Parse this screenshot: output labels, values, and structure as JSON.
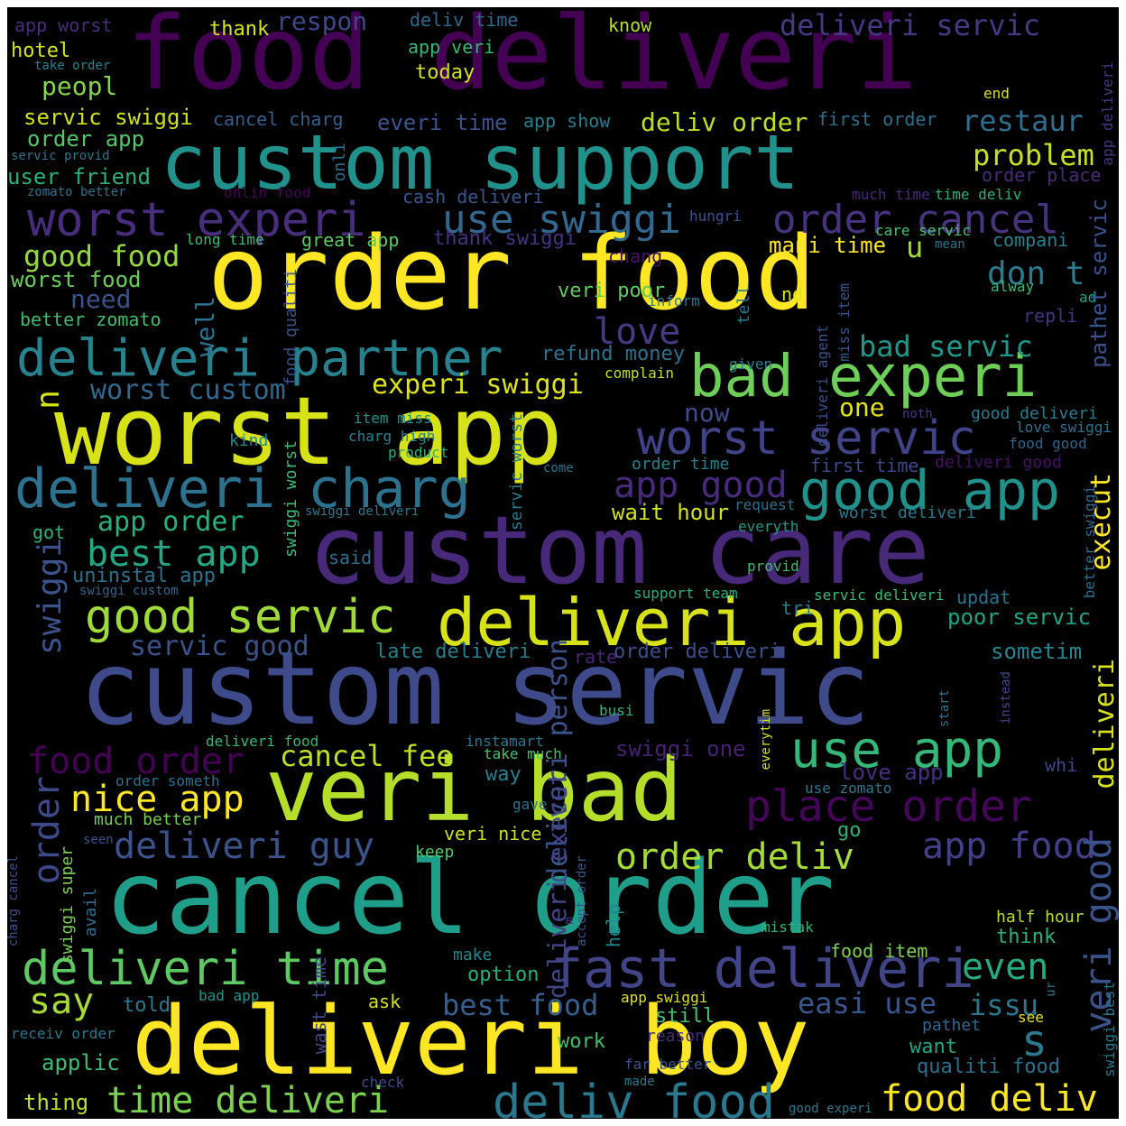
{
  "words": [
    {
      "text": "food deliveri",
      "color": "#440154"
    },
    {
      "text": "custom support",
      "color": "#21918c"
    },
    {
      "text": "order food",
      "color": "#fde725"
    },
    {
      "text": "worst app",
      "color": "#d8e219"
    },
    {
      "text": "custom care",
      "color": "#482878"
    },
    {
      "text": "custom servic",
      "color": "#3e4a89"
    },
    {
      "text": "cancel order",
      "color": "#1f9e89"
    },
    {
      "text": "veri bad",
      "color": "#b5de2b"
    },
    {
      "text": "deliveri boy",
      "color": "#fde725"
    },
    {
      "text": "deliveri app",
      "color": "#d8e219"
    },
    {
      "text": "worst experi",
      "color": "#472d7b"
    },
    {
      "text": "use swiggi",
      "color": "#31688e"
    },
    {
      "text": "deliveri partner",
      "color": "#26828e"
    },
    {
      "text": "bad experi",
      "color": "#6ece58"
    },
    {
      "text": "deliveri charg",
      "color": "#2c728e"
    },
    {
      "text": "worst servic",
      "color": "#404387"
    },
    {
      "text": "good app",
      "color": "#21918c"
    },
    {
      "text": "good servic",
      "color": "#a0da39"
    },
    {
      "text": "fast deliveri",
      "color": "#414487"
    },
    {
      "text": "deliveri time",
      "color": "#5ec962"
    },
    {
      "text": "deliv food",
      "color": "#2a788e"
    },
    {
      "text": "use app",
      "color": "#35b779"
    },
    {
      "text": "place order",
      "color": "#450559"
    },
    {
      "text": "order cancel",
      "color": "#46327e"
    },
    {
      "text": "time deliveri",
      "color": "#7ad151"
    },
    {
      "text": "food deliv",
      "color": "#fde725"
    },
    {
      "text": "deliveri servic",
      "color": "#443983"
    },
    {
      "text": "app food",
      "color": "#433e85"
    },
    {
      "text": "best app",
      "color": "#22a884"
    },
    {
      "text": "app good",
      "color": "#472a7a"
    },
    {
      "text": "food order",
      "color": "#440154"
    },
    {
      "text": "order deliv",
      "color": "#a5db36"
    },
    {
      "text": "deliveri guy",
      "color": "#3b528b"
    },
    {
      "text": "nice app",
      "color": "#fde725"
    },
    {
      "text": "good food",
      "color": "#95d840"
    },
    {
      "text": "best food",
      "color": "#355f8d"
    },
    {
      "text": "restaur",
      "color": "#2e6e8e"
    },
    {
      "text": "problem",
      "color": "#c8e020"
    },
    {
      "text": "love",
      "color": "#443a83"
    },
    {
      "text": "don t",
      "color": "#287c8e"
    },
    {
      "text": "bad servic",
      "color": "#1f988b"
    },
    {
      "text": "experi swiggi",
      "color": "#dde318"
    },
    {
      "text": "cancel fee",
      "color": "#bddf26"
    },
    {
      "text": "worst custom",
      "color": "#31688e"
    },
    {
      "text": "easi use",
      "color": "#39568c"
    },
    {
      "text": "app order",
      "color": "#29af7f"
    },
    {
      "text": "servic good",
      "color": "#3b528b"
    },
    {
      "text": "even",
      "color": "#25ab82"
    },
    {
      "text": "say",
      "color": "#a8db34"
    },
    {
      "text": "issu",
      "color": "#2a768e"
    },
    {
      "text": "s",
      "color": "#2a778e"
    },
    {
      "text": "people",
      "color": "#86d549"
    },
    {
      "text": "respon",
      "color": "#3f4788"
    },
    {
      "text": "deliv time",
      "color": "#31688e"
    },
    {
      "text": "peopl",
      "color": "#86d549"
    },
    {
      "text": "servic swiggi",
      "color": "#d0e11c"
    },
    {
      "text": "order app",
      "color": "#54c568"
    },
    {
      "text": "user friend",
      "color": "#2ab07f"
    },
    {
      "text": "everi time",
      "color": "#3b528b"
    },
    {
      "text": "deliv order",
      "color": "#bddf26"
    },
    {
      "text": "worst food",
      "color": "#6ccd5a"
    },
    {
      "text": "need",
      "color": "#3b528b"
    },
    {
      "text": "better zomato",
      "color": "#40bd72"
    },
    {
      "text": "great app",
      "color": "#5ec962"
    },
    {
      "text": "thank swiggi",
      "color": "#46337f"
    },
    {
      "text": "mani time",
      "color": "#fde725"
    },
    {
      "text": "u",
      "color": "#a2da37"
    },
    {
      "text": "veri poor",
      "color": "#60ca60"
    },
    {
      "text": "refund money",
      "color": "#2c728e"
    },
    {
      "text": "now",
      "color": "#3d4d8a"
    },
    {
      "text": "one",
      "color": "#e5e419"
    },
    {
      "text": "wait hour",
      "color": "#d2e21b"
    },
    {
      "text": "poor servic",
      "color": "#20a486"
    },
    {
      "text": "late deliveri",
      "color": "#277f8e"
    },
    {
      "text": "order deliveri",
      "color": "#3c4f8a"
    },
    {
      "text": "sometim",
      "color": "#25858e"
    },
    {
      "text": "uninstal app",
      "color": "#2c728e"
    },
    {
      "text": "swiggi one",
      "color": "#482173"
    },
    {
      "text": "love app",
      "color": "#46307e"
    },
    {
      "text": "option",
      "color": "#28ae80"
    },
    {
      "text": "told",
      "color": "#29798e"
    },
    {
      "text": "ask",
      "color": "#d2e21b"
    },
    {
      "text": "still",
      "color": "#4ac16d"
    },
    {
      "text": "work",
      "color": "#44bf70"
    },
    {
      "text": "applic",
      "color": "#3fbc73"
    },
    {
      "text": "thing",
      "color": "#bddf26"
    },
    {
      "text": "want",
      "color": "#22a785"
    },
    {
      "text": "qualiti food",
      "color": "#2d708e"
    },
    {
      "text": "think",
      "color": "#2ab07f"
    },
    {
      "text": "hotel",
      "color": "#d8e219"
    },
    {
      "text": "today",
      "color": "#d2e21b"
    },
    {
      "text": "thank",
      "color": "#d8e219"
    },
    {
      "text": "know",
      "color": "#b8de29"
    },
    {
      "text": "app worst",
      "color": "#472d7b"
    },
    {
      "text": "app veri",
      "color": "#35b779"
    },
    {
      "text": "cancel charg",
      "color": "#355f8d"
    },
    {
      "text": "app show",
      "color": "#277f8e"
    },
    {
      "text": "first order",
      "color": "#2d708e"
    },
    {
      "text": "cash deliveri",
      "color": "#39568c"
    },
    {
      "text": "companu",
      "color": "#2c728e"
    },
    {
      "text": "compani",
      "color": "#26828e"
    },
    {
      "text": "nd",
      "color": "#dde318"
    },
    {
      "text": "repli",
      "color": "#46337f"
    },
    {
      "text": "kind",
      "color": "#24878e"
    },
    {
      "text": "got",
      "color": "#2fb47c"
    },
    {
      "text": "said",
      "color": "#2e6e8e"
    },
    {
      "text": "first time",
      "color": "#3e4989"
    },
    {
      "text": "order time",
      "color": "#26828e"
    },
    {
      "text": "deliveri good",
      "color": "#471063"
    },
    {
      "text": "good deliveri",
      "color": "#287d8e"
    },
    {
      "text": "worst deliveri",
      "color": "#2a788e"
    },
    {
      "text": "updat",
      "color": "#2c738e"
    },
    {
      "text": "tri",
      "color": "#277e8e"
    },
    {
      "text": "way",
      "color": "#26828e"
    },
    {
      "text": "keep",
      "color": "#56c667"
    },
    {
      "text": "go",
      "color": "#2ab07f"
    },
    {
      "text": "veri nice",
      "color": "#cde11d"
    },
    {
      "text": "whi",
      "color": "#414487"
    },
    {
      "text": "help",
      "color": "#24878e"
    },
    {
      "text": "make",
      "color": "#23888e"
    },
    {
      "text": "wast time",
      "color": "#3e4989"
    },
    {
      "text": "half hour",
      "color": "#bddf26"
    },
    {
      "text": "food item",
      "color": "#7fd34e"
    },
    {
      "text": "see",
      "color": "#e5e419"
    },
    {
      "text": "pathet",
      "color": "#30698e"
    },
    {
      "text": "mistak",
      "color": "#2fb47c"
    },
    {
      "text": "reason",
      "color": "#472c7a"
    },
    {
      "text": "far better",
      "color": "#3a548c"
    },
    {
      "text": "app swiggi",
      "color": "#dde318"
    },
    {
      "text": "bad app",
      "color": "#1f948c"
    },
    {
      "text": "check",
      "color": "#3e4989"
    },
    {
      "text": "made",
      "color": "#2a788e"
    },
    {
      "text": "good experi",
      "color": "#2a788e"
    },
    {
      "text": "receiv order",
      "color": "#29798e"
    },
    {
      "text": "avail",
      "color": "#2e6f8e"
    },
    {
      "text": "swiggi super",
      "color": "#7ad151"
    },
    {
      "text": "charg cancel",
      "color": "#3b528b"
    },
    {
      "text": "much better",
      "color": "#75d054"
    },
    {
      "text": "order someth",
      "color": "#2d708e"
    },
    {
      "text": "seen",
      "color": "#3b528b"
    },
    {
      "text": "deliveri food",
      "color": "#35b779"
    },
    {
      "text": "instamart",
      "color": "#2a788e"
    },
    {
      "text": "take much",
      "color": "#48c16e"
    },
    {
      "text": "gave",
      "color": "#2c738e"
    },
    {
      "text": "use zomato",
      "color": "#2a788e"
    },
    {
      "text": "busi",
      "color": "#2fb47c"
    },
    {
      "text": "support team",
      "color": "#2ab07f"
    },
    {
      "text": "servic deliveri",
      "color": "#3bbb75"
    },
    {
      "text": "provid",
      "color": "#3dbc74"
    },
    {
      "text": "everyth",
      "color": "#1f9a8a"
    },
    {
      "text": "request",
      "color": "#2d708e"
    },
    {
      "text": "come",
      "color": "#2b748e"
    },
    {
      "text": "product",
      "color": "#2ab07f"
    },
    {
      "text": "charg high",
      "color": "#26828e"
    },
    {
      "text": "item miss",
      "color": "#1f948c"
    },
    {
      "text": "swiggi deliveri",
      "color": "#2a788e"
    },
    {
      "text": "swiggi custom",
      "color": "#31678e"
    },
    {
      "text": "noth",
      "color": "#453781"
    },
    {
      "text": "food good",
      "color": "#33638d"
    },
    {
      "text": "love swiggi",
      "color": "#2c728e"
    },
    {
      "text": "complain",
      "color": "#c0df25"
    },
    {
      "text": "given",
      "color": "#27808e"
    },
    {
      "text": "inform",
      "color": "#2a788e"
    },
    {
      "text": "chang",
      "color": "#471365"
    },
    {
      "text": "long time",
      "color": "#3fbc73"
    },
    {
      "text": "onlin food",
      "color": "#450457"
    },
    {
      "text": "zomato better",
      "color": "#2c738e"
    },
    {
      "text": "servic provid",
      "color": "#2c738e"
    },
    {
      "text": "take order",
      "color": "#26828e"
    },
    {
      "text": "much time",
      "color": "#482979"
    },
    {
      "text": "time deliv",
      "color": "#29af7f"
    },
    {
      "text": "hungri",
      "color": "#39558c"
    },
    {
      "text": "care servic",
      "color": "#4ac16d"
    },
    {
      "text": "mean",
      "color": "#2d718e"
    },
    {
      "text": "alway",
      "color": "#35b779"
    },
    {
      "text": "ad",
      "color": "#22a785"
    },
    {
      "text": "tell",
      "color": "#2b758e"
    },
    {
      "text": "end",
      "color": "#dde318"
    },
    {
      "text": "order place",
      "color": "#472c7a"
    },
    {
      "text": "rate",
      "color": "#482677"
    },
    {
      "text": "start",
      "color": "#2d718e"
    },
    {
      "text": "instead",
      "color": "#3e4989"
    },
    {
      "text": "ur",
      "color": "#2a788e"
    },
    {
      "text": "everytim",
      "color": "#d2e21b"
    },
    {
      "text": "accept order",
      "color": "#39568c"
    },
    {
      "text": "m",
      "color": "#463480"
    },
    {
      "text": "pathet servic",
      "color": "#3b518b"
    },
    {
      "text": "app deliveri",
      "color": "#453781"
    },
    {
      "text": "execut",
      "color": "#fde725"
    },
    {
      "text": "deliveri",
      "color": "#d8e219"
    },
    {
      "text": "veri good",
      "color": "#3a538b"
    },
    {
      "text": "better swiggi",
      "color": "#2e6e8e"
    },
    {
      "text": "swiggi best",
      "color": "#2a768e"
    },
    {
      "text": "deliveri agent",
      "color": "#3b518b"
    },
    {
      "text": "miss item",
      "color": "#39568c"
    },
    {
      "text": "servic worst",
      "color": "#2a788e"
    },
    {
      "text": "swiggi worst",
      "color": "#3dbc74"
    },
    {
      "text": "food qualiti",
      "color": "#3b518b"
    },
    {
      "text": "onli",
      "color": "#2d708e"
    },
    {
      "text": "swiggi",
      "color": "#3b528b"
    },
    {
      "text": "order",
      "color": "#3e4989"
    },
    {
      "text": "n",
      "color": "#d8e219"
    },
    {
      "text": "well",
      "color": "#2c728e"
    },
    {
      "text": "deliveri person",
      "color": "#3b528b"
    },
    {
      "text": "deliveri execut",
      "color": "#414487"
    }
  ]
}
